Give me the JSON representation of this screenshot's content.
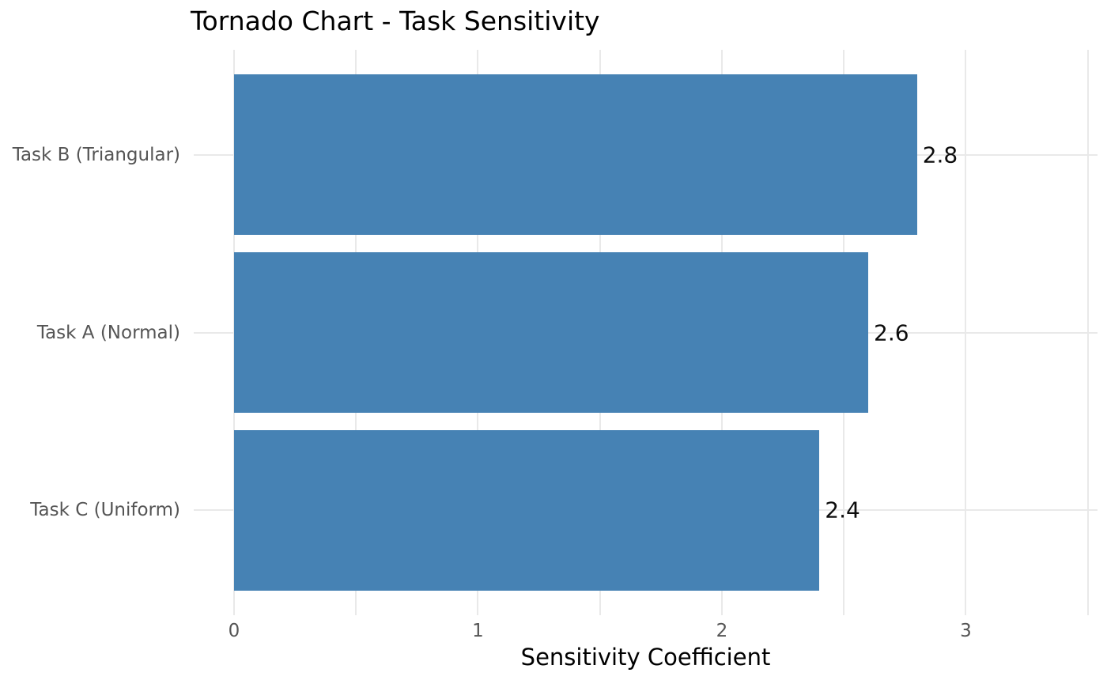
{
  "chart_data": {
    "type": "bar",
    "orientation": "horizontal",
    "title": "Tornado Chart - Task Sensitivity",
    "xlabel": "Sensitivity Coefficient",
    "ylabel": "",
    "categories": [
      "Task B (Triangular)",
      "Task A (Normal)",
      "Task C (Uniform)"
    ],
    "values": [
      2.8,
      2.6,
      2.4
    ],
    "value_labels": [
      "2.8",
      "2.6",
      "2.4"
    ],
    "x_ticks": [
      0,
      1,
      2,
      3
    ],
    "x_tick_labels": [
      "0",
      "1",
      "2",
      "3"
    ],
    "x_gridlines": [
      0,
      0.5,
      1,
      1.5,
      2,
      2.5,
      3,
      3.5
    ],
    "xlim": [
      -0.165,
      3.54
    ],
    "ylim": [
      -0.59,
      2.59
    ],
    "bar_rel_height": 0.9,
    "grid": true,
    "legend": false,
    "colors": {
      "bar": "#4682b4",
      "grid": "#e9e9e9",
      "tick_label": "#555555",
      "text": "#0c0c0c",
      "background": "#ffffff"
    }
  }
}
